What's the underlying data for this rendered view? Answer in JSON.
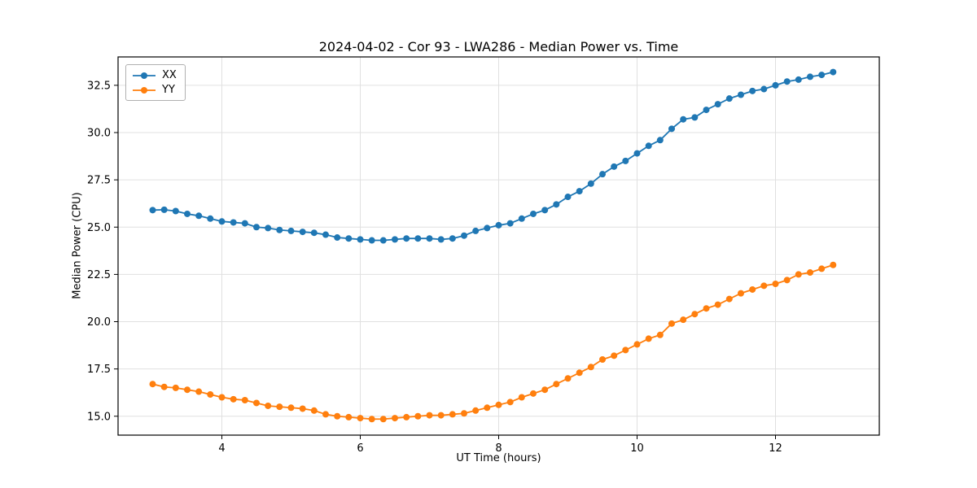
{
  "chart_data": {
    "type": "line",
    "title": "2024-04-02 - Cor 93 - LWA286 - Median Power vs. Time",
    "xlabel": "UT Time (hours)",
    "ylabel": "Median Power (CPU)",
    "xlim": [
      2.5,
      13.5
    ],
    "ylim": [
      14.0,
      34.0
    ],
    "x_ticks": [
      4,
      6,
      8,
      10,
      12
    ],
    "x_tick_labels": [
      "4",
      "6",
      "8",
      "10",
      "12"
    ],
    "y_ticks": [
      15.0,
      17.5,
      20.0,
      22.5,
      25.0,
      27.5,
      30.0,
      32.5
    ],
    "y_tick_labels": [
      "15.0",
      "17.5",
      "20.0",
      "22.5",
      "25.0",
      "27.5",
      "30.0",
      "32.5"
    ],
    "grid": true,
    "grid_color": "#e0e0e0",
    "spine_color": "#000000",
    "legend_position": "upper left",
    "x": [
      3.0,
      3.167,
      3.333,
      3.5,
      3.667,
      3.833,
      4.0,
      4.167,
      4.333,
      4.5,
      4.667,
      4.833,
      5.0,
      5.167,
      5.333,
      5.5,
      5.667,
      5.833,
      6.0,
      6.167,
      6.333,
      6.5,
      6.667,
      6.833,
      7.0,
      7.167,
      7.333,
      7.5,
      7.667,
      7.833,
      8.0,
      8.167,
      8.333,
      8.5,
      8.667,
      8.833,
      9.0,
      9.167,
      9.333,
      9.5,
      9.667,
      9.833,
      10.0,
      10.167,
      10.333,
      10.5,
      10.667,
      10.833,
      11.0,
      11.167,
      11.333,
      11.5,
      11.667,
      11.833,
      12.0,
      12.167,
      12.333,
      12.5,
      12.667,
      12.833
    ],
    "series": [
      {
        "name": "XX",
        "color": "#1f77b4",
        "values": [
          25.9,
          25.92,
          25.85,
          25.7,
          25.6,
          25.45,
          25.3,
          25.25,
          25.2,
          25.0,
          24.95,
          24.85,
          24.8,
          24.75,
          24.7,
          24.6,
          24.45,
          24.4,
          24.35,
          24.3,
          24.3,
          24.35,
          24.4,
          24.4,
          24.4,
          24.35,
          24.4,
          24.55,
          24.8,
          24.95,
          25.1,
          25.2,
          25.45,
          25.7,
          25.9,
          26.2,
          26.6,
          26.9,
          27.3,
          27.8,
          28.2,
          28.5,
          28.9,
          29.3,
          29.6,
          30.2,
          30.7,
          30.8,
          31.2,
          31.5,
          31.8,
          32.0,
          32.2,
          32.3,
          32.5,
          32.7,
          32.8,
          32.95,
          33.05,
          33.2
        ]
      },
      {
        "name": "YY",
        "color": "#ff7f0e",
        "values": [
          16.7,
          16.55,
          16.5,
          16.4,
          16.3,
          16.15,
          16.0,
          15.9,
          15.85,
          15.7,
          15.55,
          15.5,
          15.45,
          15.4,
          15.3,
          15.1,
          15.0,
          14.95,
          14.9,
          14.85,
          14.85,
          14.9,
          14.95,
          15.0,
          15.05,
          15.05,
          15.1,
          15.15,
          15.3,
          15.45,
          15.6,
          15.75,
          16.0,
          16.2,
          16.4,
          16.7,
          17.0,
          17.3,
          17.6,
          18.0,
          18.2,
          18.5,
          18.8,
          19.1,
          19.3,
          19.9,
          20.1,
          20.4,
          20.7,
          20.9,
          21.2,
          21.5,
          21.7,
          21.9,
          22.0,
          22.2,
          22.5,
          22.6,
          22.8,
          23.0
        ]
      }
    ]
  }
}
